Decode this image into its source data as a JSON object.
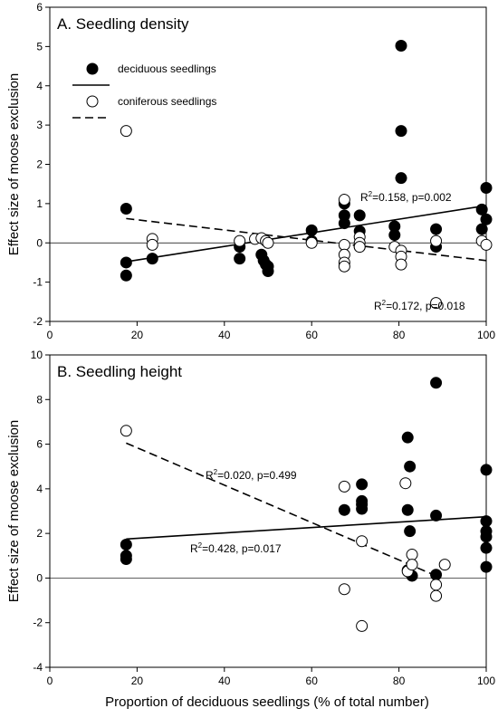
{
  "figure": {
    "shared_xlabel": "Proportion of deciduous seedlings (% of total number)"
  },
  "chart_data": [
    {
      "type": "scatter",
      "title": "A. Seedling density",
      "ylabel": "Effect size of moose exclusion",
      "xlim": [
        0,
        100
      ],
      "ylim": [
        -2,
        6
      ],
      "xticks": [
        0,
        20,
        40,
        60,
        80,
        100
      ],
      "yticks": [
        -2,
        -1,
        0,
        1,
        2,
        3,
        4,
        5,
        6
      ],
      "legend": {
        "position": "top-left",
        "entries": [
          {
            "label": "deciduous seedlings",
            "marker": "filled-circle",
            "line": "solid"
          },
          {
            "label": "coniferous seedlings",
            "marker": "open-circle",
            "line": "dashed"
          }
        ]
      },
      "series": [
        {
          "name": "deciduous seedlings",
          "marker": "filled",
          "points": [
            [
              17.5,
              0.87
            ],
            [
              17.5,
              -0.5
            ],
            [
              17.5,
              -0.83
            ],
            [
              23.5,
              -0.4
            ],
            [
              43.5,
              -0.1
            ],
            [
              43.5,
              -0.4
            ],
            [
              48.5,
              -0.3
            ],
            [
              49,
              -0.45
            ],
            [
              49.5,
              -0.55
            ],
            [
              50,
              -0.6
            ],
            [
              50,
              -0.72
            ],
            [
              60,
              0.32
            ],
            [
              60,
              0.05
            ],
            [
              67.5,
              1.0
            ],
            [
              67.5,
              0.7
            ],
            [
              67.5,
              0.5
            ],
            [
              71,
              0.7
            ],
            [
              71,
              0.3
            ],
            [
              71,
              -0.1
            ],
            [
              79,
              0.42
            ],
            [
              79,
              0.2
            ],
            [
              80.5,
              5.02
            ],
            [
              80.5,
              2.85
            ],
            [
              80.5,
              1.65
            ],
            [
              88.5,
              0.35
            ],
            [
              88.5,
              -0.1
            ],
            [
              99,
              0.85
            ],
            [
              99,
              0.35
            ],
            [
              100,
              1.4
            ],
            [
              100,
              0.6
            ]
          ],
          "fit": {
            "x": [
              17.5,
              100
            ],
            "y": [
              -0.48,
              0.95
            ],
            "style": "solid",
            "annotation": "R2=0.158, p=0.002"
          }
        },
        {
          "name": "coniferous seedlings",
          "marker": "open",
          "points": [
            [
              17.5,
              2.85
            ],
            [
              23.5,
              0.1
            ],
            [
              23.5,
              -0.05
            ],
            [
              43.5,
              0.05
            ],
            [
              47,
              0.1
            ],
            [
              48.5,
              0.12
            ],
            [
              49.5,
              0.05
            ],
            [
              50,
              0.0
            ],
            [
              60,
              0.0
            ],
            [
              67.5,
              1.1
            ],
            [
              67.5,
              -0.05
            ],
            [
              67.5,
              -0.3
            ],
            [
              67.5,
              -0.5
            ],
            [
              67.5,
              -0.6
            ],
            [
              71,
              0.15
            ],
            [
              71,
              0.0
            ],
            [
              71,
              -0.1
            ],
            [
              79,
              -0.1
            ],
            [
              80.5,
              -0.2
            ],
            [
              80.5,
              -0.35
            ],
            [
              80.5,
              -0.55
            ],
            [
              88.5,
              0.05
            ],
            [
              88.5,
              -1.53
            ],
            [
              99,
              0.05
            ],
            [
              100,
              -0.05
            ]
          ],
          "fit": {
            "x": [
              17.5,
              100
            ],
            "y": [
              0.62,
              -0.45
            ],
            "style": "dashed",
            "annotation": "R2=0.172, p=0.018"
          }
        }
      ]
    },
    {
      "type": "scatter",
      "title": "B. Seedling height",
      "ylabel": "Effect size of moose exclusion",
      "xlabel": "Proportion of deciduous seedlings (% of total number)",
      "xlim": [
        0,
        100
      ],
      "ylim": [
        -4,
        10
      ],
      "xticks": [
        0,
        20,
        40,
        60,
        80,
        100
      ],
      "yticks": [
        -4,
        -2,
        0,
        2,
        4,
        6,
        8,
        10
      ],
      "series": [
        {
          "name": "deciduous seedlings",
          "marker": "filled",
          "points": [
            [
              17.5,
              1.5
            ],
            [
              17.5,
              1.0
            ],
            [
              17.5,
              0.85
            ],
            [
              67.5,
              3.05
            ],
            [
              71.5,
              4.2
            ],
            [
              71.5,
              3.45
            ],
            [
              71.5,
              3.3
            ],
            [
              71.5,
              3.1
            ],
            [
              82,
              6.3
            ],
            [
              82,
              3.05
            ],
            [
              82.5,
              5.0
            ],
            [
              82.5,
              2.1
            ],
            [
              82,
              0.35
            ],
            [
              83,
              0.1
            ],
            [
              88.5,
              8.75
            ],
            [
              88.5,
              2.8
            ],
            [
              88.5,
              0.15
            ],
            [
              100,
              4.85
            ],
            [
              100,
              2.55
            ],
            [
              100,
              2.1
            ],
            [
              100,
              1.85
            ],
            [
              100,
              1.35
            ],
            [
              100,
              0.5
            ]
          ],
          "fit": {
            "x": [
              17.5,
              100
            ],
            "y": [
              1.75,
              2.75
            ],
            "style": "solid",
            "annotation": "R2=0.020, p=0.499"
          }
        },
        {
          "name": "coniferous seedlings",
          "marker": "open",
          "points": [
            [
              17.5,
              6.6
            ],
            [
              67.5,
              4.1
            ],
            [
              67.5,
              -0.5
            ],
            [
              71.5,
              1.65
            ],
            [
              71.5,
              -2.15
            ],
            [
              81.5,
              4.25
            ],
            [
              82,
              0.3
            ],
            [
              83,
              1.05
            ],
            [
              83,
              0.6
            ],
            [
              88.5,
              -0.3
            ],
            [
              88.5,
              -0.8
            ],
            [
              90.5,
              0.6
            ]
          ],
          "fit": {
            "x": [
              17.5,
              88.5
            ],
            "y": [
              6.05,
              0.1
            ],
            "style": "dashed",
            "annotation": "R2=0.428, p=0.017"
          }
        }
      ]
    }
  ]
}
